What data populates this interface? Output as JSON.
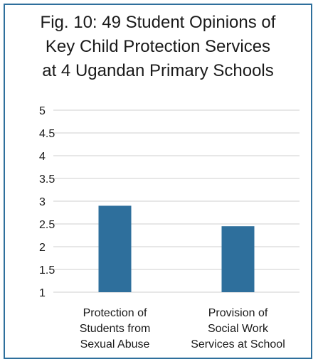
{
  "chart_data": {
    "type": "bar",
    "title_lines": [
      "Fig. 10: 49 Student Opinions of",
      "Key Child Protection Services",
      "at 4 Ugandan Primary Schools"
    ],
    "categories": [
      [
        "Protection of",
        "Students from",
        "Sexual Abuse"
      ],
      [
        "Provision of",
        "Social Work",
        "Services at School"
      ]
    ],
    "values": [
      2.9,
      2.45
    ],
    "yticks": [
      "1",
      "1.5",
      "2",
      "2.5",
      "3",
      "3.5",
      "4",
      "4.5",
      "5"
    ],
    "ylim": [
      1,
      5
    ],
    "grid": true,
    "bar_color": "#2e6f9c",
    "frame_color": "#2e6f9c"
  }
}
